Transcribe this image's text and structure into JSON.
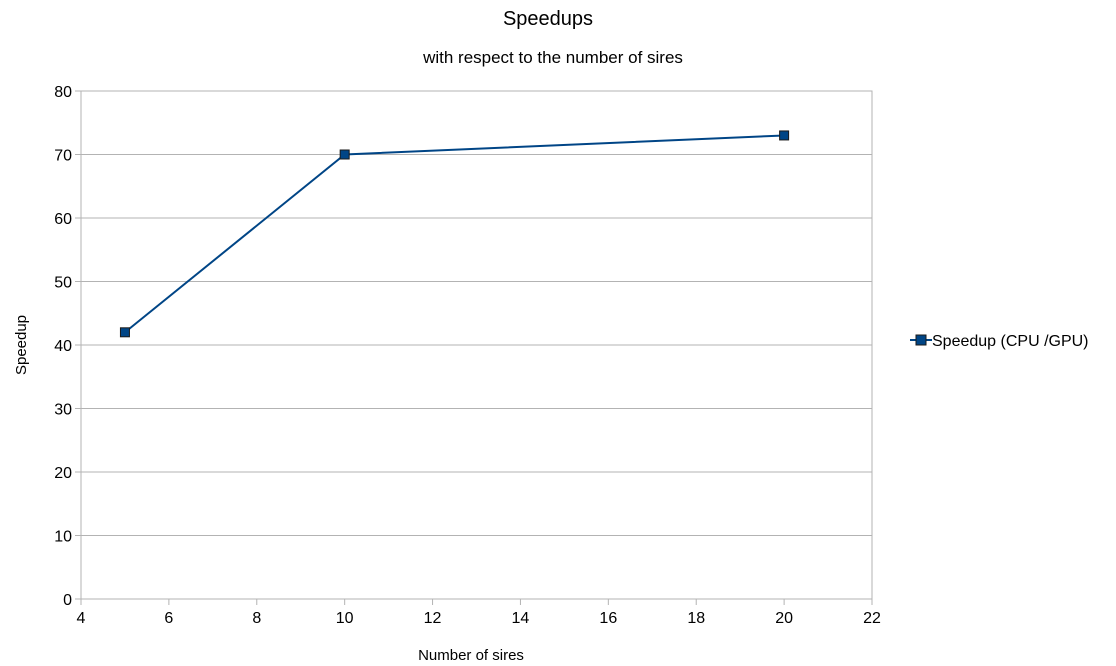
{
  "chart_data": {
    "type": "line",
    "title": "Speedups",
    "subtitle": "with respect to the number of sires",
    "xlabel": "Number of sires",
    "ylabel": "Speedup",
    "xlim": [
      4,
      22
    ],
    "ylim": [
      0,
      80
    ],
    "xticks": [
      4,
      6,
      8,
      10,
      12,
      14,
      16,
      18,
      20,
      22
    ],
    "yticks": [
      0,
      10,
      20,
      30,
      40,
      50,
      60,
      70,
      80
    ],
    "grid": "horizontal",
    "legend_position": "right",
    "series": [
      {
        "name": "Speedup (CPU /GPU)",
        "color": "#004586",
        "marker": "square",
        "x": [
          5,
          10,
          20
        ],
        "y": [
          42,
          70,
          73
        ]
      }
    ]
  }
}
